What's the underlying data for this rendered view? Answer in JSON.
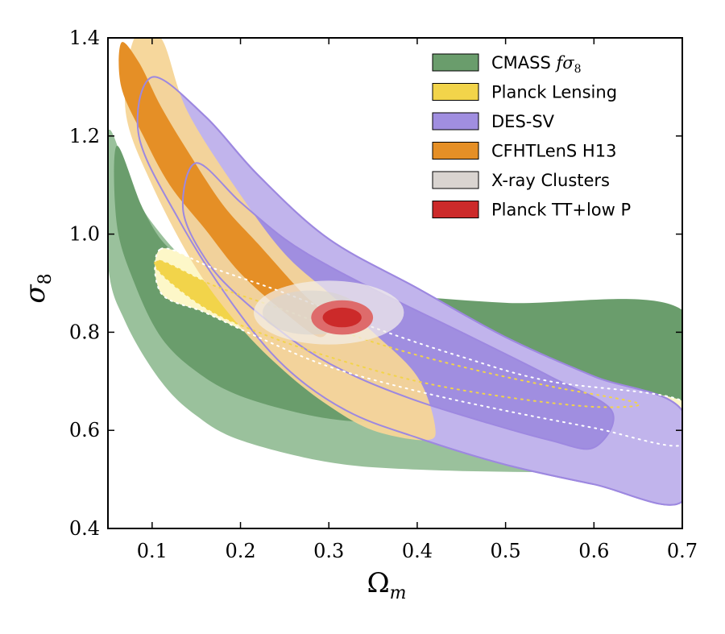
{
  "chart_data": {
    "type": "contour",
    "title": "",
    "xlabel": "Ω_m",
    "ylabel": "σ_8",
    "xlim": [
      0.05,
      0.7
    ],
    "ylim": [
      0.4,
      1.4
    ],
    "xticks": [
      "0.1",
      "0.2",
      "0.3",
      "0.4",
      "0.5",
      "0.6",
      "0.7"
    ],
    "yticks": [
      "0.4",
      "0.6",
      "0.8",
      "1.0",
      "1.2",
      "1.4"
    ],
    "grid": false,
    "legend_position": "top-right",
    "colors": {
      "cmass_inner": "#6a9d6c",
      "cmass_outer": "#9ac19c",
      "lensing_inner": "#f2d44a",
      "lensing_outer": "#fdf7c8",
      "des_inner": "#a08ee0",
      "des_outer": "#c1b4ec",
      "des_line": "#9d88e0",
      "cfht_inner": "#e58f26",
      "cfht_outer": "#f6d597",
      "xray_inner": "#d9d4d0",
      "xray_outer": "#f2efea",
      "planck_inner": "#cc2a2a",
      "planck_outer": "#de6b6b"
    },
    "series": [
      {
        "name": "CMASS fσ8",
        "color": "#6a9d6c",
        "outer": [
          [
            0.05,
            1.21
          ],
          [
            0.08,
            1.08
          ],
          [
            0.11,
            1.0
          ],
          [
            0.14,
            0.945
          ],
          [
            0.18,
            0.905
          ],
          [
            0.25,
            0.88
          ],
          [
            0.35,
            0.86
          ],
          [
            0.5,
            0.84
          ],
          [
            0.7,
            0.83
          ],
          [
            0.7,
            0.52
          ],
          [
            0.55,
            0.515
          ],
          [
            0.4,
            0.52
          ],
          [
            0.3,
            0.535
          ],
          [
            0.2,
            0.58
          ],
          [
            0.15,
            0.63
          ],
          [
            0.11,
            0.7
          ],
          [
            0.07,
            0.82
          ],
          [
            0.05,
            0.94
          ]
        ],
        "inner": [
          [
            0.06,
            1.18
          ],
          [
            0.09,
            1.05
          ],
          [
            0.12,
            0.97
          ],
          [
            0.17,
            0.92
          ],
          [
            0.25,
            0.898
          ],
          [
            0.35,
            0.88
          ],
          [
            0.5,
            0.86
          ],
          [
            0.7,
            0.845
          ],
          [
            0.7,
            0.595
          ],
          [
            0.55,
            0.6
          ],
          [
            0.45,
            0.605
          ],
          [
            0.35,
            0.615
          ],
          [
            0.28,
            0.63
          ],
          [
            0.2,
            0.67
          ],
          [
            0.15,
            0.72
          ],
          [
            0.11,
            0.79
          ],
          [
            0.08,
            0.9
          ],
          [
            0.06,
            1.02
          ]
        ]
      },
      {
        "name": "Planck Lensing",
        "color": "#f2d44a",
        "outer": [
          [
            0.11,
            0.97
          ],
          [
            0.17,
            0.93
          ],
          [
            0.25,
            0.88
          ],
          [
            0.35,
            0.81
          ],
          [
            0.45,
            0.75
          ],
          [
            0.55,
            0.7
          ],
          [
            0.7,
            0.66
          ],
          [
            0.7,
            0.57
          ],
          [
            0.6,
            0.605
          ],
          [
            0.5,
            0.64
          ],
          [
            0.4,
            0.68
          ],
          [
            0.3,
            0.73
          ],
          [
            0.22,
            0.79
          ],
          [
            0.16,
            0.84
          ],
          [
            0.11,
            0.88
          ]
        ],
        "inner": [
          [
            0.11,
            0.945
          ],
          [
            0.17,
            0.895
          ],
          [
            0.25,
            0.845
          ],
          [
            0.35,
            0.78
          ],
          [
            0.45,
            0.73
          ],
          [
            0.55,
            0.69
          ],
          [
            0.65,
            0.655
          ],
          [
            0.6,
            0.648
          ],
          [
            0.5,
            0.668
          ],
          [
            0.4,
            0.7
          ],
          [
            0.3,
            0.75
          ],
          [
            0.22,
            0.8
          ],
          [
            0.16,
            0.85
          ],
          [
            0.11,
            0.92
          ]
        ]
      },
      {
        "name": "DES-SV",
        "color": "#a08ee0",
        "outer": [
          [
            0.1,
            1.32
          ],
          [
            0.16,
            1.24
          ],
          [
            0.22,
            1.12
          ],
          [
            0.3,
            0.99
          ],
          [
            0.4,
            0.89
          ],
          [
            0.5,
            0.79
          ],
          [
            0.6,
            0.71
          ],
          [
            0.7,
            0.64
          ],
          [
            0.7,
            0.455
          ],
          [
            0.6,
            0.49
          ],
          [
            0.5,
            0.53
          ],
          [
            0.4,
            0.585
          ],
          [
            0.32,
            0.64
          ],
          [
            0.25,
            0.73
          ],
          [
            0.19,
            0.86
          ],
          [
            0.13,
            1.03
          ],
          [
            0.085,
            1.2
          ]
        ],
        "inner": [
          [
            0.15,
            1.145
          ],
          [
            0.2,
            1.065
          ],
          [
            0.25,
            0.99
          ],
          [
            0.3,
            0.935
          ],
          [
            0.37,
            0.87
          ],
          [
            0.45,
            0.8
          ],
          [
            0.55,
            0.71
          ],
          [
            0.62,
            0.64
          ],
          [
            0.6,
            0.565
          ],
          [
            0.55,
            0.58
          ],
          [
            0.48,
            0.615
          ],
          [
            0.4,
            0.66
          ],
          [
            0.33,
            0.71
          ],
          [
            0.27,
            0.77
          ],
          [
            0.2,
            0.87
          ],
          [
            0.16,
            0.95
          ],
          [
            0.135,
            1.05
          ]
        ]
      },
      {
        "name": "CFHTLenS H13",
        "color": "#e58f26",
        "outer": [
          [
            0.08,
            1.4
          ],
          [
            0.11,
            1.4
          ],
          [
            0.14,
            1.25
          ],
          [
            0.2,
            1.08
          ],
          [
            0.25,
            0.96
          ],
          [
            0.3,
            0.88
          ],
          [
            0.35,
            0.8
          ],
          [
            0.4,
            0.71
          ],
          [
            0.42,
            0.61
          ],
          [
            0.41,
            0.58
          ],
          [
            0.35,
            0.6
          ],
          [
            0.3,
            0.65
          ],
          [
            0.25,
            0.72
          ],
          [
            0.2,
            0.81
          ],
          [
            0.15,
            0.93
          ],
          [
            0.1,
            1.1
          ],
          [
            0.07,
            1.25
          ]
        ],
        "inner": [
          [
            0.065,
            1.39
          ],
          [
            0.085,
            1.35
          ],
          [
            0.11,
            1.26
          ],
          [
            0.14,
            1.17
          ],
          [
            0.18,
            1.06
          ],
          [
            0.22,
            0.98
          ],
          [
            0.27,
            0.88
          ],
          [
            0.3,
            0.83
          ],
          [
            0.29,
            0.79
          ],
          [
            0.25,
            0.84
          ],
          [
            0.2,
            0.92
          ],
          [
            0.16,
            1.01
          ],
          [
            0.12,
            1.1
          ],
          [
            0.09,
            1.2
          ],
          [
            0.065,
            1.3
          ]
        ]
      },
      {
        "name": "X-ray Clusters",
        "color": "#d9d4d0",
        "outer_center": [
          0.3,
          0.84
        ],
        "outer_radii": [
          0.085,
          0.065
        ],
        "inner_center": [
          0.28,
          0.84
        ],
        "inner_radii": [
          0.055,
          0.045
        ]
      },
      {
        "name": "Planck TT+low P",
        "color": "#cc2a2a",
        "outer_center": [
          0.315,
          0.83
        ],
        "outer_radii": [
          0.035,
          0.035
        ],
        "inner_center": [
          0.315,
          0.83
        ],
        "inner_radii": [
          0.022,
          0.02
        ]
      }
    ],
    "legend": [
      {
        "key": "cmass",
        "label_text": "CMASS ",
        "label_math": "fσ",
        "label_sub": "8",
        "color": "#6a9d6c"
      },
      {
        "key": "lensing",
        "label_text": "Planck Lensing",
        "color": "#f2d44a"
      },
      {
        "key": "des",
        "label_text": "DES-SV",
        "color": "#a08ee0"
      },
      {
        "key": "cfht",
        "label_text": "CFHTLenS H13",
        "color": "#e58f26"
      },
      {
        "key": "xray",
        "label_text": "X-ray Clusters",
        "color": "#d9d4d0"
      },
      {
        "key": "planck",
        "label_text": "Planck TT+low P",
        "color": "#cc2a2a"
      }
    ],
    "axis_text": {
      "x_main": "Ω",
      "x_sub": "m",
      "y_main": "σ",
      "y_sub": "8"
    }
  }
}
